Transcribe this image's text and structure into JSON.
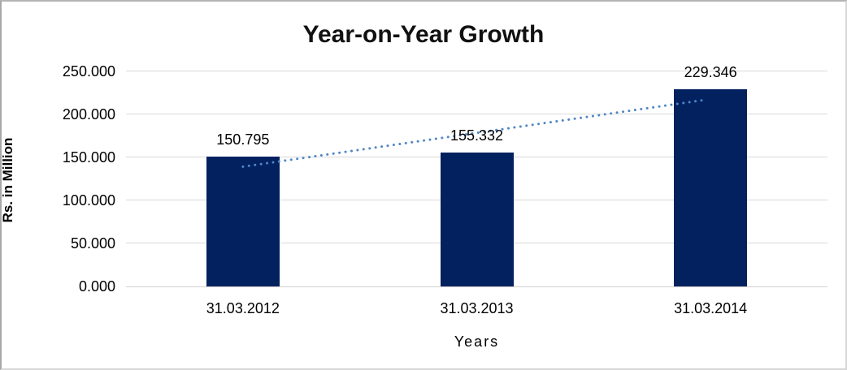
{
  "chart_data": {
    "type": "bar",
    "title": "Year-on-Year Growth",
    "xlabel": "Years",
    "ylabel": "Rs. in Million",
    "categories": [
      "31.03.2012",
      "31.03.2013",
      "31.03.2014"
    ],
    "values": [
      150.795,
      155.332,
      229.346
    ],
    "data_labels": [
      "150.795",
      "155.332",
      "229.346"
    ],
    "ytick_labels": [
      "0.000",
      "50.000",
      "100.000",
      "150.000",
      "200.000",
      "250.000"
    ],
    "ylim": [
      0,
      250
    ],
    "ytick_step": 50,
    "grid": "horizontal-on",
    "legend": "none",
    "bar_color": "#03215f",
    "trendline": {
      "type": "linear",
      "style": "dotted",
      "color": "#4f86c6"
    },
    "gridline_color": "#d9d9d9",
    "text_color": "#000000"
  }
}
